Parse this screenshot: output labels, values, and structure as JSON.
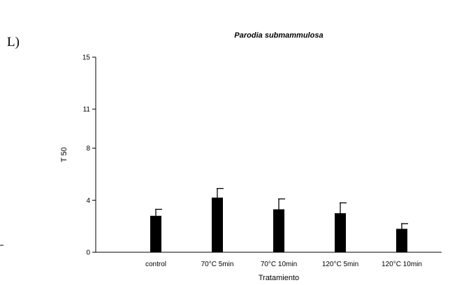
{
  "panel_label": "L)",
  "chart_data": {
    "type": "bar",
    "title": "Parodia submammulosa",
    "xlabel": "Tratamiento",
    "ylabel": "T 50",
    "categories": [
      "control",
      "70°C 5min",
      "70°C 10min",
      "120°C 5min",
      "120°C 10min"
    ],
    "values": [
      2.8,
      4.2,
      3.3,
      3.0,
      1.8
    ],
    "errors": [
      0.5,
      0.7,
      0.8,
      0.8,
      0.4
    ],
    "ylim": [
      0,
      15
    ],
    "yticks": [
      0,
      4,
      8,
      11,
      15
    ],
    "grid": false,
    "legend": "none",
    "bar_color": "#000000"
  }
}
